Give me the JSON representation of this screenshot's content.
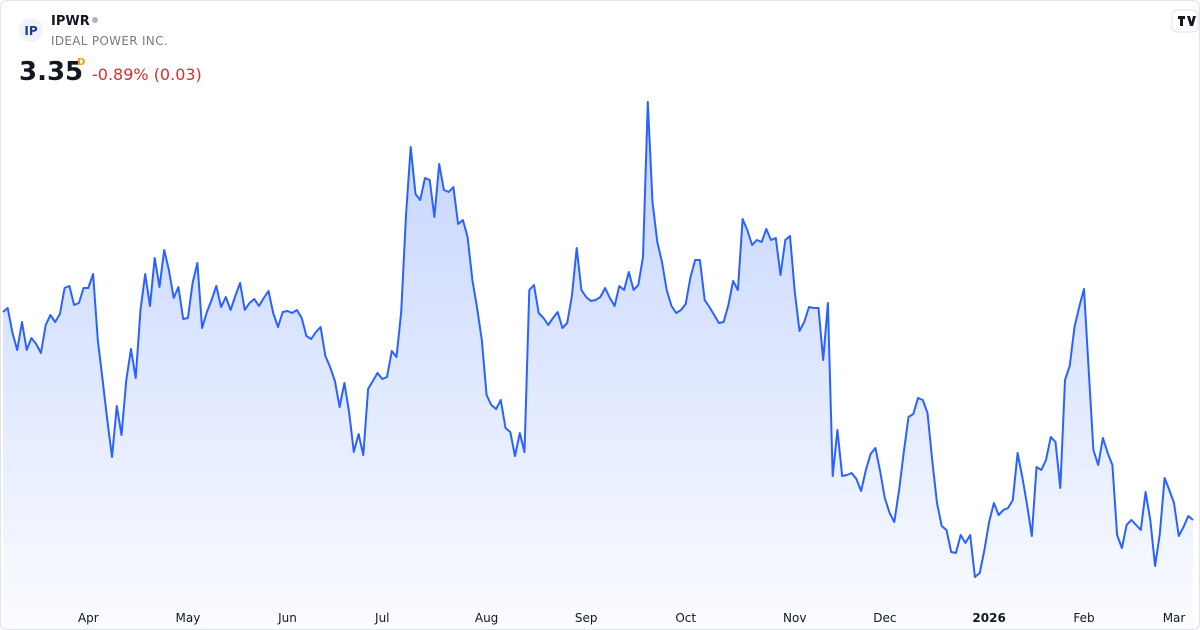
{
  "header": {
    "logo": "IP",
    "symbol": "IPWR",
    "name": "IDEAL POWER INC.",
    "last_price": 3.35,
    "session": "D",
    "change": "-0.89% (0.03)"
  },
  "chart_data": {
    "type": "area",
    "color": "#2962ff",
    "values": [
      5.43,
      5.47,
      5.22,
      5.05,
      5.33,
      5.05,
      5.17,
      5.11,
      5.02,
      5.3,
      5.4,
      5.33,
      5.41,
      5.67,
      5.69,
      5.5,
      5.52,
      5.67,
      5.67,
      5.81,
      5.15,
      4.75,
      4.35,
      3.98,
      4.49,
      4.2,
      4.75,
      5.06,
      4.77,
      5.45,
      5.81,
      5.49,
      5.97,
      5.68,
      6.05,
      5.85,
      5.57,
      5.68,
      5.36,
      5.37,
      5.72,
      5.92,
      5.27,
      5.43,
      5.55,
      5.69,
      5.48,
      5.58,
      5.45,
      5.59,
      5.72,
      5.45,
      5.52,
      5.56,
      5.49,
      5.57,
      5.64,
      5.42,
      5.28,
      5.43,
      5.44,
      5.42,
      5.45,
      5.37,
      5.19,
      5.16,
      5.23,
      5.28,
      4.99,
      4.88,
      4.74,
      4.48,
      4.72,
      4.43,
      4.03,
      4.21,
      4.0,
      4.66,
      4.74,
      4.82,
      4.76,
      4.78,
      5.04,
      4.98,
      5.43,
      6.4,
      7.08,
      6.61,
      6.55,
      6.77,
      6.75,
      6.38,
      6.91,
      6.65,
      6.63,
      6.68,
      6.31,
      6.35,
      6.18,
      5.75,
      5.47,
      5.15,
      4.6,
      4.5,
      4.46,
      4.55,
      4.27,
      4.23,
      3.99,
      4.22,
      4.03,
      5.65,
      5.7,
      5.42,
      5.37,
      5.3,
      5.37,
      5.43,
      5.27,
      5.32,
      5.59,
      6.07,
      5.65,
      5.58,
      5.54,
      5.55,
      5.58,
      5.67,
      5.57,
      5.49,
      5.69,
      5.65,
      5.83,
      5.65,
      5.7,
      5.98,
      7.53,
      6.53,
      6.13,
      5.93,
      5.65,
      5.49,
      5.42,
      5.45,
      5.51,
      5.78,
      5.95,
      5.95,
      5.55,
      5.48,
      5.4,
      5.32,
      5.33,
      5.5,
      5.74,
      5.65,
      6.36,
      6.25,
      6.1,
      6.15,
      6.13,
      6.26,
      6.15,
      6.17,
      5.8,
      6.15,
      6.19,
      5.63,
      5.24,
      5.33,
      5.48,
      5.47,
      5.47,
      4.95,
      5.52,
      3.79,
      4.25,
      3.79,
      3.8,
      3.82,
      3.76,
      3.64,
      3.85,
      4.01,
      4.07,
      3.84,
      3.57,
      3.42,
      3.33,
      3.65,
      4.03,
      4.38,
      4.41,
      4.57,
      4.55,
      4.42,
      3.95,
      3.52,
      3.29,
      3.25,
      3.03,
      3.02,
      3.2,
      3.12,
      3.2,
      2.78,
      2.82,
      3.05,
      3.33,
      3.52,
      3.4,
      3.45,
      3.47,
      3.55,
      4.02,
      3.78,
      3.5,
      3.19,
      3.88,
      3.85,
      3.95,
      4.18,
      4.13,
      3.67,
      4.75,
      4.89,
      5.28,
      5.48,
      5.66,
      4.85,
      4.05,
      3.9,
      4.17,
      4.02,
      3.9,
      3.2,
      3.07,
      3.3,
      3.35,
      3.3,
      3.25,
      3.63,
      3.35,
      2.89,
      3.21,
      3.77,
      3.65,
      3.52,
      3.19,
      3.28,
      3.39,
      3.35
    ],
    "xlim": [
      0,
      251
    ],
    "ylim": [
      2.55,
      7.6
    ],
    "xticks": [
      {
        "value": 18,
        "label": "Apr"
      },
      {
        "value": 39,
        "label": "May"
      },
      {
        "value": 60,
        "label": "Jun"
      },
      {
        "value": 80,
        "label": "Jul"
      },
      {
        "value": 102,
        "label": "Aug"
      },
      {
        "value": 123,
        "label": "Sep"
      },
      {
        "value": 144,
        "label": "Oct"
      },
      {
        "value": 167,
        "label": "Nov"
      },
      {
        "value": 186,
        "label": "Dec"
      },
      {
        "value": 208,
        "label": "2026"
      },
      {
        "value": 228,
        "label": "Feb"
      },
      {
        "value": 247,
        "label": "Mar"
      }
    ]
  }
}
